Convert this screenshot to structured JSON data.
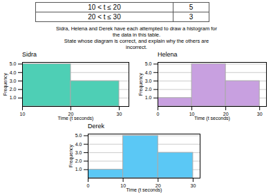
{
  "chart_data": [
    {
      "type": "table",
      "categories": [
        "10 < t ≤ 20",
        "20 < t ≤ 30"
      ],
      "values": [
        5,
        3
      ],
      "subtitle": "Sidra, Helena and Derek have each attempted to draw a histogram for\nthe data in this table.\nState whose diagram is correct, and explain why the others are\nincorrect."
    },
    {
      "type": "histogram",
      "title": "Sidra",
      "bins": [
        10,
        20,
        30
      ],
      "values": [
        5,
        3
      ],
      "color": "#4ecfb5",
      "xlim": [
        10,
        32
      ],
      "ylim": [
        0,
        5.2
      ],
      "xticks": [
        10,
        20,
        30
      ],
      "yticks": [
        1,
        2,
        3,
        4,
        5
      ],
      "xlabel": "Time (t seconds)",
      "ylabel": "Frequency",
      "grid": true
    },
    {
      "type": "histogram",
      "title": "Helena",
      "bins": [
        0,
        10,
        20,
        30
      ],
      "values": [
        1,
        5,
        3
      ],
      "color": "#c8a0e0",
      "xlim": [
        0,
        32
      ],
      "ylim": [
        0,
        5.2
      ],
      "xticks": [
        0,
        10,
        20,
        30
      ],
      "yticks": [
        1,
        2,
        3,
        4,
        5
      ],
      "xlabel": "Time (t seconds)",
      "ylabel": "Frequency",
      "grid": true
    },
    {
      "type": "histogram",
      "title": "Derek",
      "bins": [
        0,
        10,
        20,
        30
      ],
      "values": [
        1,
        5,
        3
      ],
      "color": "#5bc8f5",
      "xlim": [
        0,
        32
      ],
      "ylim": [
        0,
        5.2
      ],
      "xticks": [
        0,
        10,
        20,
        30
      ],
      "yticks": [
        1,
        2,
        3,
        4,
        5
      ],
      "xlabel": "Time (t seconds)",
      "ylabel": "Frequency",
      "grid": true
    }
  ]
}
